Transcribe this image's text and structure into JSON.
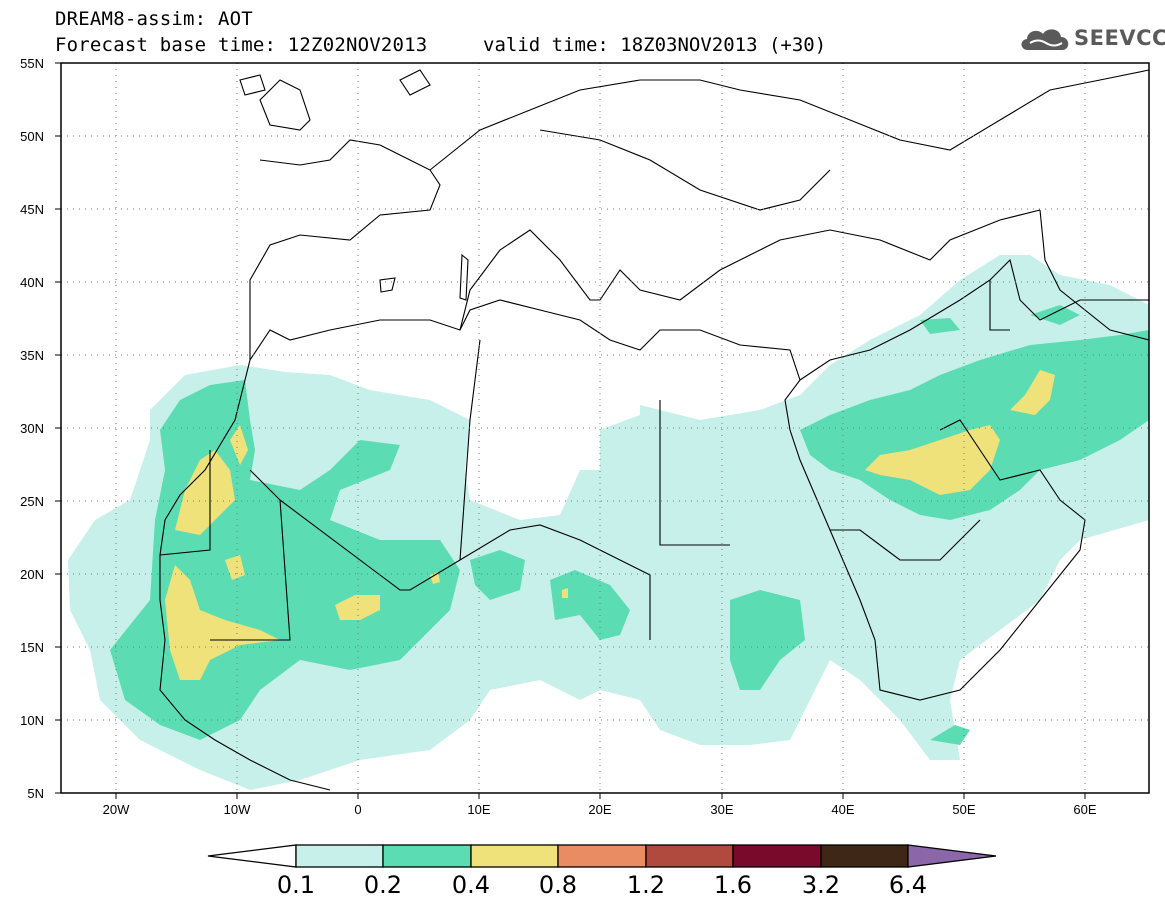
{
  "header": {
    "model_line": "DREAM8-assim: AOT",
    "base_time_line": "Forecast base time: 12Z02NOV2013",
    "valid_time_line": "valid time: 18Z03NOV2013 (+30)",
    "logo_text": "SEEVCCC"
  },
  "map": {
    "lat_labels": [
      "55N",
      "50N",
      "45N",
      "40N",
      "35N",
      "30N",
      "25N",
      "20N",
      "15N",
      "10N",
      "5N"
    ],
    "lon_labels": [
      "20W",
      "10W",
      "0",
      "10E",
      "20E",
      "30E",
      "40E",
      "50E",
      "60E"
    ],
    "lon_range": [
      -25,
      65
    ],
    "lat_range": [
      5,
      55
    ]
  },
  "colorbar": {
    "labels": [
      "0.1",
      "0.2",
      "0.4",
      "0.8",
      "1.2",
      "1.6",
      "3.2",
      "6.4"
    ],
    "colors": [
      "#ffffff",
      "#c8f0ea",
      "#5cdcb3",
      "#f0e27a",
      "#e98c63",
      "#b04a3e",
      "#7a0a2c",
      "#3e2716",
      "#8b66a8"
    ]
  }
}
